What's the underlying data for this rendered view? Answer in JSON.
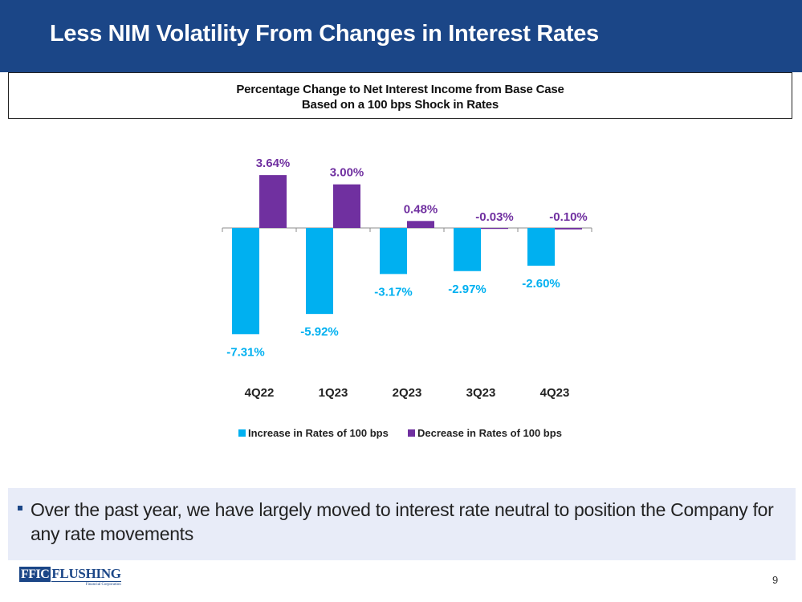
{
  "slide": {
    "title": "Less NIM Volatility From Changes in Interest Rates",
    "page_number": "9"
  },
  "chart_data": {
    "type": "bar",
    "title": "Percentage Change to Net Interest Income from Base Case",
    "subtitle": "Based on a 100 bps Shock in Rates",
    "categories": [
      "4Q22",
      "1Q23",
      "2Q23",
      "3Q23",
      "4Q23"
    ],
    "series": [
      {
        "name": "Increase in Rates of 100 bps",
        "values": [
          -7.31,
          -5.92,
          -3.17,
          -2.97,
          -2.6
        ],
        "labels": [
          "-7.31%",
          "-5.92%",
          "-3.17%",
          "-2.97%",
          "-2.60%"
        ],
        "color": "#00b0f0"
      },
      {
        "name": "Decrease in Rates of 100 bps",
        "values": [
          3.64,
          3.0,
          0.48,
          -0.03,
          -0.1
        ],
        "labels": [
          "3.64%",
          "3.00%",
          "0.48%",
          "-0.03%",
          "-0.10%"
        ],
        "color": "#7030a0"
      }
    ],
    "legend_position": "bottom",
    "grid": false
  },
  "bullets": [
    "Over the past year, we have largely moved to interest rate neutral to position the Company for any rate movements"
  ],
  "logo": {
    "mark": "FFIC",
    "name": "FLUSHING",
    "sub": "Financial Corporation"
  },
  "colors": {
    "header": "#1b4687",
    "bullet_bg": "#e8ecf8",
    "increase": "#00b0f0",
    "decrease": "#7030a0"
  }
}
